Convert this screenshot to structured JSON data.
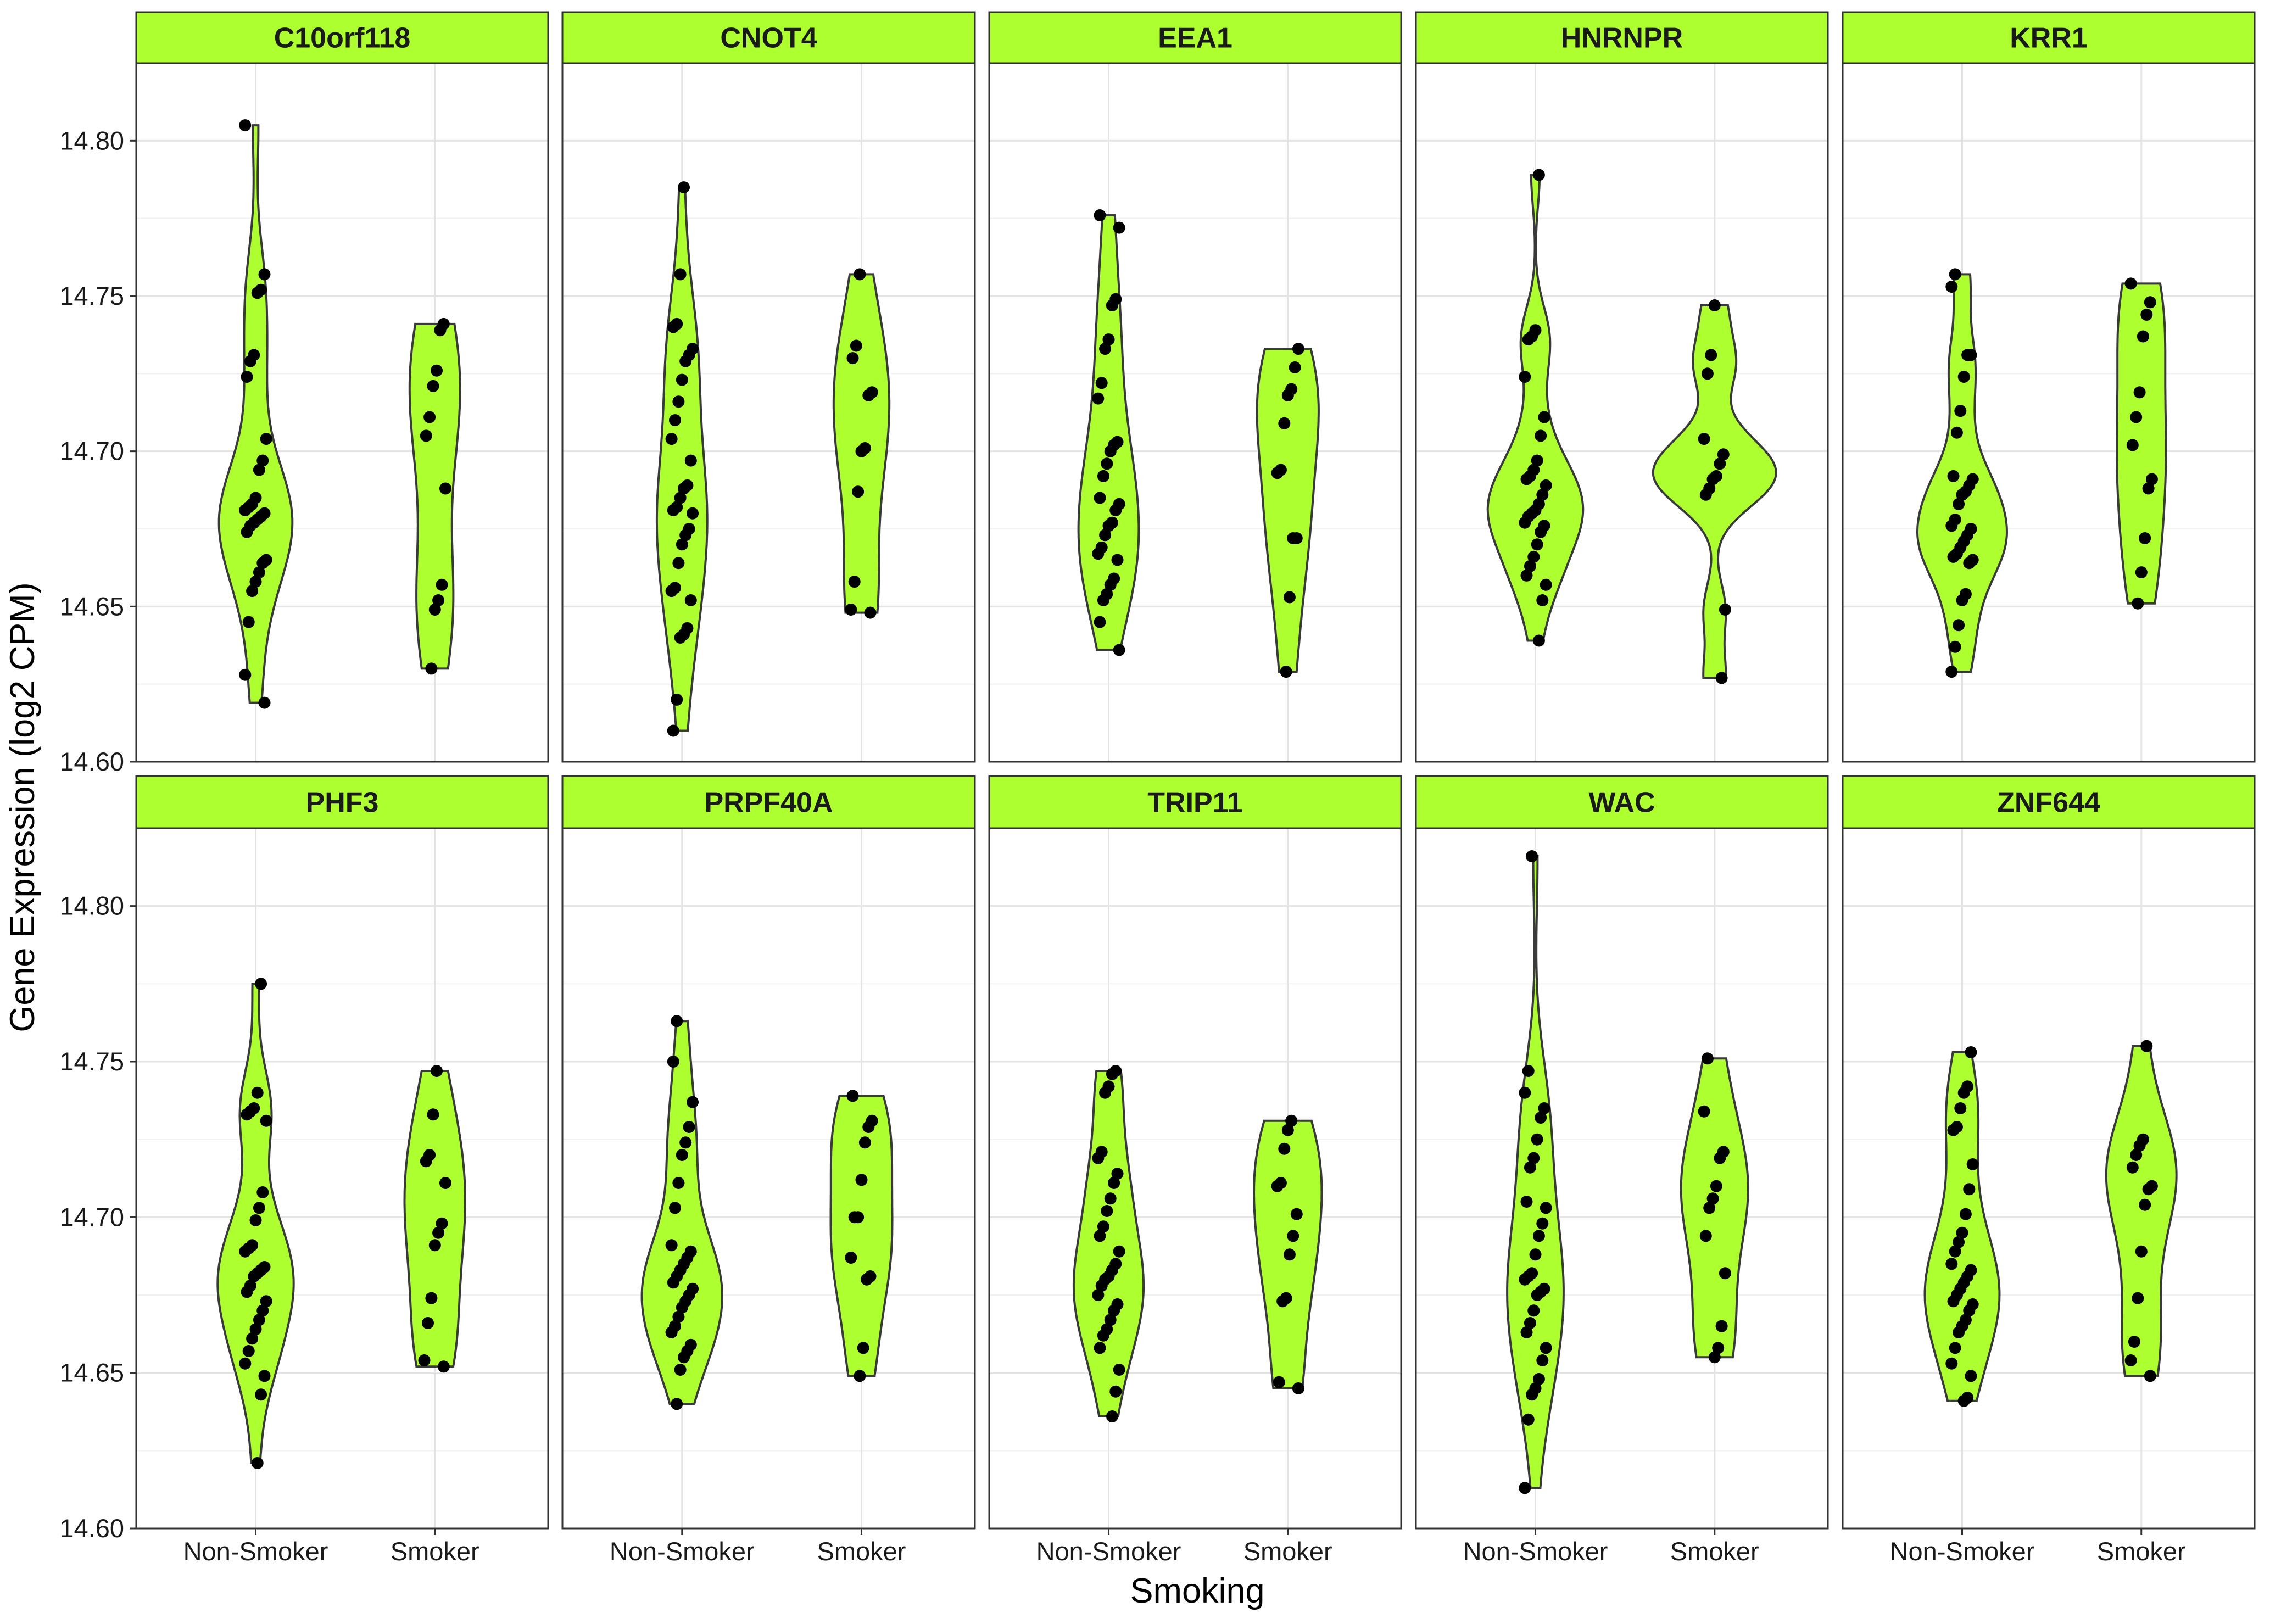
{
  "chart_data": {
    "type": "violin",
    "xlabel": "Smoking",
    "ylabel": "Gene Expression (log2 CPM)",
    "categories": [
      "Non-Smoker",
      "Smoker"
    ],
    "ylim": [
      14.6,
      14.825
    ],
    "y_ticks": [
      "14.60",
      "14.65",
      "14.70",
      "14.75",
      "14.80"
    ],
    "grid": true,
    "facet_strip_color": "#adff2f",
    "violin_fill": "#adff2f",
    "point_color": "#000000",
    "panels": [
      {
        "title": "C10orf118",
        "groups": [
          {
            "category": "Non-Smoker",
            "points": [
              14.805,
              14.757,
              14.752,
              14.751,
              14.731,
              14.729,
              14.724,
              14.704,
              14.697,
              14.694,
              14.685,
              14.683,
              14.682,
              14.681,
              14.68,
              14.679,
              14.678,
              14.677,
              14.676,
              14.674,
              14.665,
              14.664,
              14.661,
              14.658,
              14.655,
              14.645,
              14.628,
              14.619
            ]
          },
          {
            "category": "Smoker",
            "points": [
              14.741,
              14.739,
              14.726,
              14.721,
              14.711,
              14.705,
              14.688,
              14.657,
              14.652,
              14.649,
              14.63
            ]
          }
        ]
      },
      {
        "title": "CNOT4",
        "groups": [
          {
            "category": "Non-Smoker",
            "points": [
              14.785,
              14.757,
              14.741,
              14.74,
              14.733,
              14.731,
              14.729,
              14.723,
              14.716,
              14.71,
              14.704,
              14.697,
              14.689,
              14.688,
              14.685,
              14.682,
              14.681,
              14.68,
              14.675,
              14.673,
              14.67,
              14.664,
              14.656,
              14.655,
              14.652,
              14.643,
              14.641,
              14.64,
              14.62,
              14.61
            ]
          },
          {
            "category": "Smoker",
            "points": [
              14.757,
              14.734,
              14.73,
              14.719,
              14.718,
              14.701,
              14.7,
              14.687,
              14.658,
              14.649,
              14.648
            ]
          }
        ]
      },
      {
        "title": "EEA1",
        "groups": [
          {
            "category": "Non-Smoker",
            "points": [
              14.776,
              14.772,
              14.749,
              14.747,
              14.736,
              14.733,
              14.722,
              14.717,
              14.703,
              14.702,
              14.7,
              14.696,
              14.692,
              14.685,
              14.683,
              14.681,
              14.677,
              14.676,
              14.673,
              14.669,
              14.667,
              14.665,
              14.659,
              14.657,
              14.654,
              14.652,
              14.645,
              14.636
            ]
          },
          {
            "category": "Smoker",
            "points": [
              14.733,
              14.727,
              14.72,
              14.718,
              14.709,
              14.694,
              14.693,
              14.672,
              14.672,
              14.653,
              14.629
            ]
          }
        ]
      },
      {
        "title": "HNRNPR",
        "groups": [
          {
            "category": "Non-Smoker",
            "points": [
              14.789,
              14.739,
              14.737,
              14.736,
              14.724,
              14.711,
              14.705,
              14.697,
              14.694,
              14.692,
              14.691,
              14.689,
              14.686,
              14.683,
              14.681,
              14.68,
              14.679,
              14.677,
              14.676,
              14.674,
              14.67,
              14.666,
              14.663,
              14.66,
              14.657,
              14.652,
              14.639
            ]
          },
          {
            "category": "Smoker",
            "points": [
              14.747,
              14.731,
              14.725,
              14.704,
              14.699,
              14.696,
              14.692,
              14.691,
              14.688,
              14.686,
              14.649,
              14.627
            ]
          }
        ]
      },
      {
        "title": "KRR1",
        "groups": [
          {
            "category": "Non-Smoker",
            "points": [
              14.757,
              14.753,
              14.731,
              14.731,
              14.724,
              14.713,
              14.706,
              14.692,
              14.691,
              14.689,
              14.687,
              14.686,
              14.683,
              14.678,
              14.676,
              14.675,
              14.673,
              14.671,
              14.669,
              14.667,
              14.666,
              14.665,
              14.664,
              14.654,
              14.652,
              14.644,
              14.637,
              14.629
            ]
          },
          {
            "category": "Smoker",
            "points": [
              14.754,
              14.748,
              14.744,
              14.737,
              14.719,
              14.711,
              14.702,
              14.691,
              14.688,
              14.672,
              14.661,
              14.651
            ]
          }
        ]
      },
      {
        "title": "PHF3",
        "groups": [
          {
            "category": "Non-Smoker",
            "points": [
              14.775,
              14.74,
              14.735,
              14.734,
              14.733,
              14.731,
              14.708,
              14.703,
              14.699,
              14.691,
              14.69,
              14.689,
              14.684,
              14.683,
              14.682,
              14.681,
              14.678,
              14.676,
              14.673,
              14.67,
              14.667,
              14.664,
              14.661,
              14.657,
              14.653,
              14.649,
              14.643,
              14.621
            ]
          },
          {
            "category": "Smoker",
            "points": [
              14.747,
              14.733,
              14.72,
              14.718,
              14.711,
              14.698,
              14.695,
              14.691,
              14.674,
              14.666,
              14.654,
              14.652
            ]
          }
        ]
      },
      {
        "title": "PRPF40A",
        "groups": [
          {
            "category": "Non-Smoker",
            "points": [
              14.763,
              14.75,
              14.737,
              14.729,
              14.724,
              14.72,
              14.711,
              14.703,
              14.691,
              14.689,
              14.687,
              14.685,
              14.683,
              14.681,
              14.679,
              14.677,
              14.675,
              14.673,
              14.671,
              14.668,
              14.665,
              14.663,
              14.659,
              14.657,
              14.655,
              14.651,
              14.64
            ]
          },
          {
            "category": "Smoker",
            "points": [
              14.739,
              14.731,
              14.729,
              14.724,
              14.712,
              14.7,
              14.7,
              14.687,
              14.681,
              14.68,
              14.658,
              14.649
            ]
          }
        ]
      },
      {
        "title": "TRIP11",
        "groups": [
          {
            "category": "Non-Smoker",
            "points": [
              14.747,
              14.746,
              14.742,
              14.74,
              14.721,
              14.719,
              14.714,
              14.711,
              14.706,
              14.702,
              14.697,
              14.694,
              14.689,
              14.685,
              14.683,
              14.681,
              14.68,
              14.678,
              14.675,
              14.672,
              14.67,
              14.667,
              14.664,
              14.662,
              14.658,
              14.651,
              14.644,
              14.636
            ]
          },
          {
            "category": "Smoker",
            "points": [
              14.731,
              14.728,
              14.722,
              14.711,
              14.71,
              14.701,
              14.694,
              14.688,
              14.674,
              14.673,
              14.647,
              14.645
            ]
          }
        ]
      },
      {
        "title": "WAC",
        "groups": [
          {
            "category": "Non-Smoker",
            "points": [
              14.816,
              14.747,
              14.74,
              14.735,
              14.732,
              14.725,
              14.719,
              14.716,
              14.705,
              14.703,
              14.698,
              14.694,
              14.688,
              14.682,
              14.681,
              14.68,
              14.677,
              14.676,
              14.675,
              14.67,
              14.666,
              14.663,
              14.658,
              14.654,
              14.648,
              14.645,
              14.643,
              14.635,
              14.613
            ]
          },
          {
            "category": "Smoker",
            "points": [
              14.751,
              14.734,
              14.721,
              14.719,
              14.71,
              14.706,
              14.703,
              14.694,
              14.682,
              14.665,
              14.658,
              14.655
            ]
          }
        ]
      },
      {
        "title": "ZNF644",
        "groups": [
          {
            "category": "Non-Smoker",
            "points": [
              14.753,
              14.742,
              14.74,
              14.735,
              14.729,
              14.728,
              14.717,
              14.709,
              14.701,
              14.695,
              14.692,
              14.689,
              14.685,
              14.683,
              14.681,
              14.679,
              14.677,
              14.675,
              14.673,
              14.672,
              14.67,
              14.667,
              14.665,
              14.663,
              14.658,
              14.653,
              14.649,
              14.642,
              14.641
            ]
          },
          {
            "category": "Smoker",
            "points": [
              14.755,
              14.725,
              14.723,
              14.72,
              14.716,
              14.71,
              14.709,
              14.704,
              14.689,
              14.674,
              14.66,
              14.654,
              14.649
            ]
          }
        ]
      }
    ]
  }
}
